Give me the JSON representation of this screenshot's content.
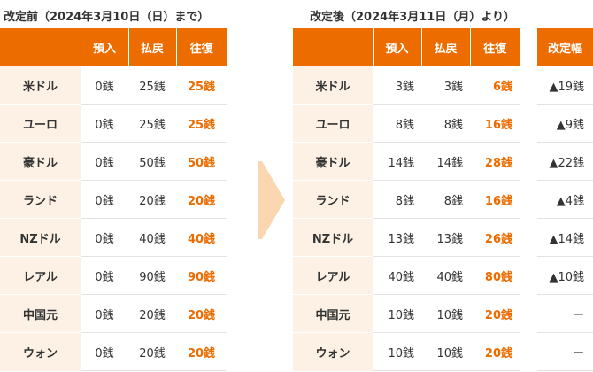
{
  "before": {
    "title": "改定前（2024年3月10日（日）まで）",
    "headers": [
      "",
      "預入",
      "払戻",
      "往復"
    ],
    "rows": [
      [
        "米ドル",
        "0銭",
        "25銭",
        "25銭"
      ],
      [
        "ユーロ",
        "0銭",
        "25銭",
        "25銭"
      ],
      [
        "豪ドル",
        "0銭",
        "50銭",
        "50銭"
      ],
      [
        "ランド",
        "0銭",
        "20銭",
        "20銭"
      ],
      [
        "NZドル",
        "0銭",
        "40銭",
        "40銭"
      ],
      [
        "レアル",
        "0銭",
        "90銭",
        "90銭"
      ],
      [
        "中国元",
        "0銭",
        "20銭",
        "20銭"
      ],
      [
        "ウォン",
        "0銭",
        "20銭",
        "20銭"
      ]
    ]
  },
  "after": {
    "title": "改定後（2024年3月11日（月）より）",
    "headers": [
      "",
      "預入",
      "払戻",
      "往復"
    ],
    "rows": [
      [
        "米ドル",
        "3銭",
        "3銭",
        "6銭"
      ],
      [
        "ユーロ",
        "8銭",
        "8銭",
        "16銭"
      ],
      [
        "豪ドル",
        "14銭",
        "14銭",
        "28銭"
      ],
      [
        "ランド",
        "8銭",
        "8銭",
        "16銭"
      ],
      [
        "NZドル",
        "13銭",
        "13銭",
        "26銭"
      ],
      [
        "レアル",
        "40銭",
        "40銭",
        "80銭"
      ],
      [
        "中国元",
        "10銭",
        "10銭",
        "20銭"
      ],
      [
        "ウォン",
        "10銭",
        "10銭",
        "20銭"
      ]
    ]
  },
  "change": {
    "header": "改定幅",
    "values": [
      "▲19銭",
      "▲9銭",
      "▲22銭",
      "▲4銭",
      "▲14銭",
      "▲10銭",
      "ー",
      "ー"
    ]
  },
  "colors": {
    "header_bg": "#ec6c00",
    "currency_bg": "#fdf0e4",
    "highlight_text": "#ec6c00",
    "arrow": "#fad7b0"
  }
}
